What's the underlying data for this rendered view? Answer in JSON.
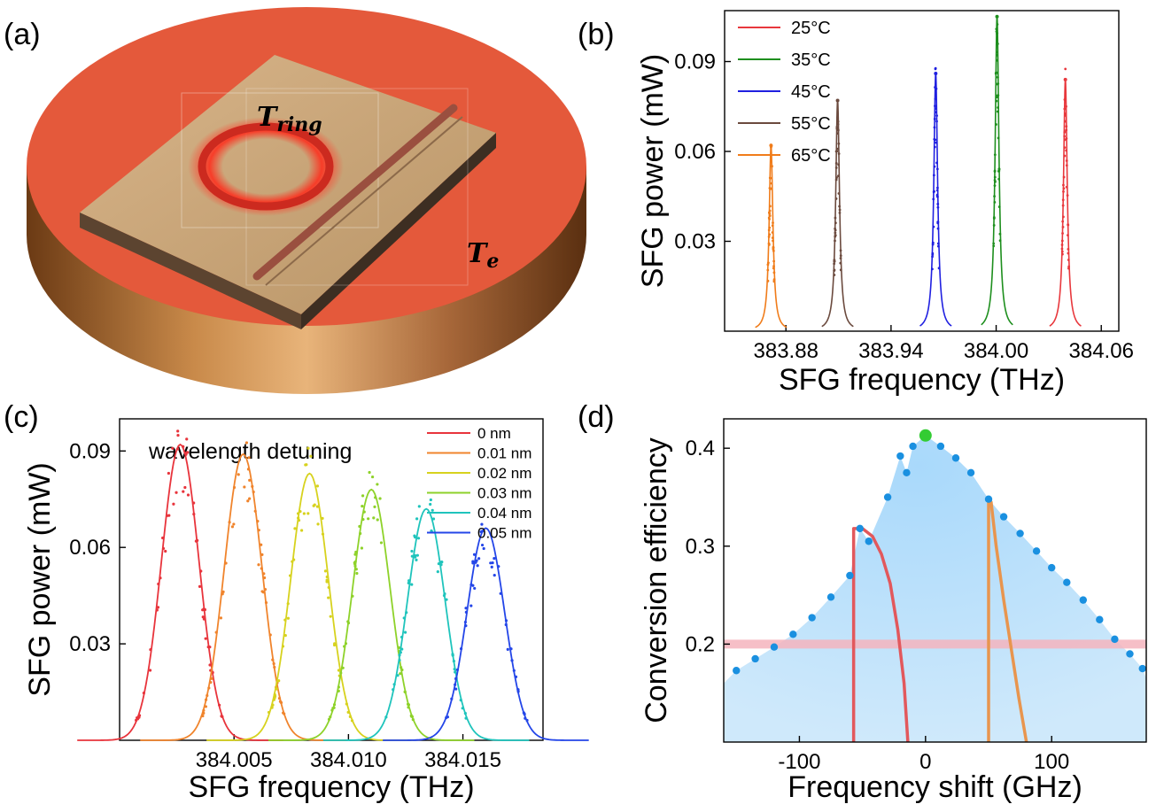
{
  "panels": {
    "a": {
      "label": "(a)",
      "t_ring_main": "T",
      "t_ring_sub": "ring",
      "t_e_main": "T",
      "t_e_sub": "e"
    }
  },
  "chart_data": [
    {
      "id": "b",
      "type": "line",
      "panel_label": "(b)",
      "xlabel": "SFG frequency (THz)",
      "ylabel": "SFG power (mW)",
      "xlim": [
        383.845,
        384.07
      ],
      "ylim": [
        0,
        0.107
      ],
      "xticks": [
        383.88,
        383.94,
        384.0,
        384.06
      ],
      "xtick_labels": [
        "383.88",
        "383.94",
        "384.00",
        "384.06"
      ],
      "yticks": [
        0.03,
        0.06,
        0.09
      ],
      "ytick_labels": [
        "0.03",
        "0.06",
        "0.09"
      ],
      "legend_position": "top-left",
      "series": [
        {
          "name": "25°C",
          "color": "#e8383d",
          "center": 384.0395,
          "peak": 0.084
        },
        {
          "name": "35°C",
          "color": "#1e8f1e",
          "center": 384.0005,
          "peak": 0.105
        },
        {
          "name": "45°C",
          "color": "#2020e0",
          "center": 383.9655,
          "peak": 0.086
        },
        {
          "name": "55°C",
          "color": "#6b4a3e",
          "center": 383.9095,
          "peak": 0.077
        },
        {
          "name": "65°C",
          "color": "#f07c1a",
          "center": 383.8715,
          "peak": 0.062
        }
      ]
    },
    {
      "id": "c",
      "type": "line",
      "panel_label": "(c)",
      "annotation": "wavelength detuning",
      "xlabel": "SFG frequency (THz)",
      "ylabel": "SFG power (mW)",
      "xlim": [
        384.0,
        384.0185
      ],
      "ylim": [
        0,
        0.1
      ],
      "xticks": [
        384.005,
        384.01,
        384.015
      ],
      "xtick_labels": [
        "384.005",
        "384.010",
        "384.015"
      ],
      "yticks": [
        0.03,
        0.06,
        0.09
      ],
      "ytick_labels": [
        "0.03",
        "0.06",
        "0.09"
      ],
      "legend_position": "top-right",
      "series": [
        {
          "name": "0    nm",
          "color": "#e8343c",
          "center": 384.00265,
          "peak": 0.092
        },
        {
          "name": "0.01 nm",
          "color": "#f0842c",
          "center": 384.0054,
          "peak": 0.089
        },
        {
          "name": "0.02 nm",
          "color": "#d7d21e",
          "center": 384.0083,
          "peak": 0.083
        },
        {
          "name": "0.03 nm",
          "color": "#8ed22a",
          "center": 384.011,
          "peak": 0.078
        },
        {
          "name": "0.04 nm",
          "color": "#1fc4bc",
          "center": 384.0134,
          "peak": 0.072
        },
        {
          "name": "0.05 nm",
          "color": "#2446e8",
          "center": 384.016,
          "peak": 0.066
        }
      ]
    },
    {
      "id": "d",
      "type": "scatter",
      "panel_label": "(d)",
      "xlabel": "Frequency shift (GHz)",
      "ylabel": "Conversion efficiency",
      "xlim": [
        -160,
        175
      ],
      "ylim": [
        0.1,
        0.43
      ],
      "xticks": [
        -100,
        0,
        100
      ],
      "xtick_labels": [
        "-100",
        "0",
        "100"
      ],
      "yticks": [
        0.2,
        0.3,
        0.4
      ],
      "ytick_labels": [
        "0.2",
        "0.3",
        "0.4"
      ],
      "colors": {
        "points": "#1a90e0",
        "fill": "#bfe3fb",
        "peak": "#33cc33",
        "band": "#f5b4bd",
        "red_curve": "#e2585c",
        "orange_curve": "#e8954e"
      },
      "threshold": 0.2,
      "peak_point": {
        "x": 0,
        "y": 0.413
      },
      "points": [
        {
          "x": -150,
          "y": 0.173
        },
        {
          "x": -135,
          "y": 0.185
        },
        {
          "x": -120,
          "y": 0.197
        },
        {
          "x": -105,
          "y": 0.21
        },
        {
          "x": -90,
          "y": 0.227
        },
        {
          "x": -75,
          "y": 0.248
        },
        {
          "x": -60,
          "y": 0.27
        },
        {
          "x": -52,
          "y": 0.318
        },
        {
          "x": -45,
          "y": 0.305
        },
        {
          "x": -30,
          "y": 0.35
        },
        {
          "x": -15,
          "y": 0.375
        },
        {
          "x": -20,
          "y": 0.392
        },
        {
          "x": -10,
          "y": 0.402
        },
        {
          "x": 0,
          "y": 0.413
        },
        {
          "x": 12,
          "y": 0.402
        },
        {
          "x": 24,
          "y": 0.39
        },
        {
          "x": 36,
          "y": 0.375
        },
        {
          "x": 50,
          "y": 0.348
        },
        {
          "x": 62,
          "y": 0.33
        },
        {
          "x": 75,
          "y": 0.313
        },
        {
          "x": 88,
          "y": 0.295
        },
        {
          "x": 100,
          "y": 0.278
        },
        {
          "x": 112,
          "y": 0.263
        },
        {
          "x": 125,
          "y": 0.245
        },
        {
          "x": 138,
          "y": 0.225
        },
        {
          "x": 150,
          "y": 0.205
        },
        {
          "x": 162,
          "y": 0.19
        },
        {
          "x": 172,
          "y": 0.175
        }
      ],
      "red_curve": {
        "x": [
          -57,
          -57,
          -50,
          -42,
          -35,
          -28,
          -22,
          -17,
          -14
        ],
        "y": [
          0.1,
          0.318,
          0.318,
          0.31,
          0.292,
          0.262,
          0.215,
          0.16,
          0.1
        ]
      },
      "orange_curve": {
        "x": [
          50,
          50,
          52,
          56,
          62,
          68,
          74,
          80
        ],
        "y": [
          0.1,
          0.345,
          0.345,
          0.3,
          0.245,
          0.195,
          0.145,
          0.1
        ]
      }
    }
  ]
}
